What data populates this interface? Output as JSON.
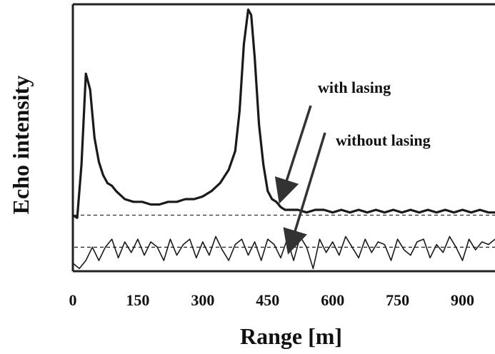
{
  "chart_data": {
    "type": "line",
    "xlabel": "Range [m]",
    "ylabel": "Echo intensity",
    "xlim": [
      0,
      975
    ],
    "ylim": [
      0,
      100
    ],
    "x_ticks": [
      "0",
      "150",
      "300",
      "450",
      "600",
      "750",
      "900"
    ],
    "grid": false,
    "series": [
      {
        "name": "with lasing",
        "x": [
          0,
          10,
          20,
          30,
          40,
          50,
          60,
          70,
          80,
          90,
          100,
          120,
          140,
          160,
          180,
          200,
          220,
          240,
          260,
          280,
          300,
          320,
          340,
          360,
          375,
          385,
          395,
          405,
          412,
          420,
          430,
          440,
          450,
          460,
          470,
          480,
          490,
          500,
          520,
          540,
          560,
          580,
          600,
          620,
          640,
          660,
          680,
          700,
          720,
          740,
          760,
          780,
          800,
          820,
          840,
          860,
          880,
          900,
          920,
          940,
          960,
          975
        ],
        "values": [
          21,
          20,
          40,
          74,
          68,
          50,
          41,
          36,
          33,
          32,
          30,
          27,
          26,
          26,
          25,
          25,
          26,
          26,
          27,
          27,
          28,
          30,
          33,
          38,
          45,
          60,
          85,
          98,
          96,
          80,
          55,
          40,
          30,
          27,
          26,
          24,
          23,
          23,
          23,
          22,
          23,
          23,
          22,
          23,
          22,
          23,
          22,
          23,
          22,
          23,
          22,
          23,
          22,
          23,
          22,
          23,
          22,
          23,
          22,
          23,
          22,
          22
        ]
      },
      {
        "name": "without lasing",
        "x": [
          0,
          15,
          30,
          45,
          60,
          75,
          90,
          105,
          120,
          135,
          150,
          165,
          180,
          195,
          210,
          225,
          240,
          255,
          270,
          285,
          300,
          315,
          330,
          345,
          360,
          375,
          390,
          405,
          420,
          435,
          450,
          465,
          480,
          495,
          510,
          525,
          540,
          555,
          570,
          585,
          600,
          615,
          630,
          645,
          660,
          675,
          690,
          705,
          720,
          735,
          750,
          765,
          780,
          795,
          810,
          825,
          840,
          855,
          870,
          885,
          900,
          915,
          930,
          945,
          960,
          975
        ],
        "values": [
          3,
          1,
          4,
          9,
          4,
          9,
          12,
          5,
          11,
          7,
          12,
          6,
          11,
          9,
          4,
          12,
          6,
          10,
          12,
          5,
          11,
          6,
          13,
          8,
          4,
          10,
          12,
          6,
          11,
          4,
          12,
          10,
          5,
          12,
          4,
          13,
          9,
          1,
          12,
          7,
          11,
          6,
          13,
          9,
          5,
          12,
          7,
          11,
          10,
          4,
          12,
          8,
          6,
          11,
          12,
          5,
          10,
          7,
          13,
          9,
          4,
          12,
          8,
          11,
          10,
          12
        ]
      }
    ],
    "baselines": [
      {
        "name": "with lasing baseline",
        "y": 21,
        "style": "dashed"
      },
      {
        "name": "without lasing baseline",
        "y": 9,
        "style": "dashed"
      }
    ],
    "annotations": [
      {
        "text": "with lasing",
        "arrow_to": {
          "x": 480,
          "y": 27
        }
      },
      {
        "text": "without lasing",
        "arrow_to": {
          "x": 500,
          "y": 8
        }
      }
    ]
  }
}
